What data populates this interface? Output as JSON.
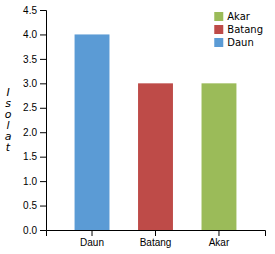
{
  "chart_data": {
    "type": "bar",
    "ylabel": "I\ns\no\nl\na\nt",
    "categories": [
      "Daun",
      "Batang",
      "Akar"
    ],
    "values": [
      4,
      3,
      3
    ],
    "colors": [
      "#5B9BD5",
      "#BE4B48",
      "#9BBB59"
    ],
    "ylim": [
      0,
      4.5
    ],
    "yticks": [
      {
        "value": 0,
        "label": "0.0"
      },
      0.5,
      {
        "value": 1,
        "label": "1.0"
      },
      1.5,
      {
        "value": 2,
        "label": "2.0"
      },
      2.5,
      {
        "value": 3,
        "label": "3.0"
      },
      3.5,
      {
        "value": 4,
        "label": "4.0"
      },
      4.5
    ],
    "legend": "upper right",
    "legend_entries": [
      {
        "name": "Akar",
        "color": "#9BBB59"
      },
      {
        "name": "Batang",
        "color": "#BE4B48"
      },
      {
        "name": "Daun",
        "color": "#5B9BD5"
      }
    ],
    "grid": false
  }
}
